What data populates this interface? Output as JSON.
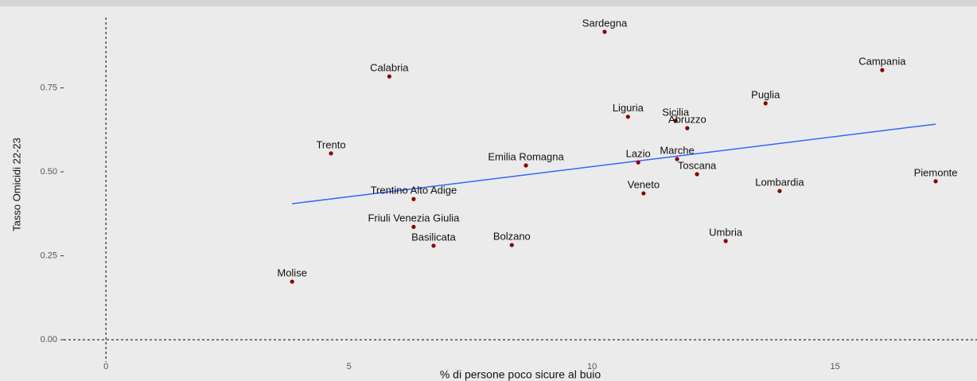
{
  "chart_data": {
    "type": "scatter",
    "x_label": "% di persone poco sicure al buio",
    "y_label": "Tasso Omicidi 22-23",
    "labels": [
      "Sardegna",
      "Calabria",
      "Campania",
      "Puglia",
      "Liguria",
      "Sicilia",
      "Abruzzo",
      "Trento",
      "Emilia Romagna",
      "Lazio",
      "Marche",
      "Toscana",
      "Piemonte",
      "Lombardia",
      "Veneto",
      "Trentino Alto Adige",
      "Friuli Venezia Giulia",
      "Basilicata",
      "Bolzano",
      "Umbria",
      "Molise"
    ],
    "x": [
      10.26,
      5.83,
      15.97,
      13.57,
      10.74,
      11.72,
      11.96,
      4.63,
      8.64,
      10.95,
      11.75,
      12.16,
      17.07,
      13.86,
      11.06,
      6.33,
      6.33,
      6.74,
      8.35,
      12.75,
      3.83
    ],
    "values": [
      0.917,
      0.784,
      0.803,
      0.704,
      0.664,
      0.652,
      0.63,
      0.555,
      0.519,
      0.528,
      0.538,
      0.493,
      0.472,
      0.443,
      0.436,
      0.419,
      0.336,
      0.28,
      0.282,
      0.294,
      0.173
    ],
    "color": "#8b0000",
    "fit": {
      "x": [
        3.83,
        17.07
      ],
      "y": [
        0.405,
        0.642
      ],
      "color": "#3366ff"
    },
    "hline": 0,
    "vline": 0,
    "xlim": [
      -0.87,
      17.92
    ],
    "ylim": [
      -0.066,
      0.988
    ],
    "xticks": [
      0,
      5,
      10,
      15
    ],
    "yticks": [
      {
        "value": 0,
        "label": "0.00"
      },
      {
        "value": 0.25,
        "label": "0.25"
      },
      {
        "value": 0.5,
        "label": "0.50"
      },
      {
        "value": 0.75,
        "label": "0.75"
      }
    ],
    "grid": false
  }
}
